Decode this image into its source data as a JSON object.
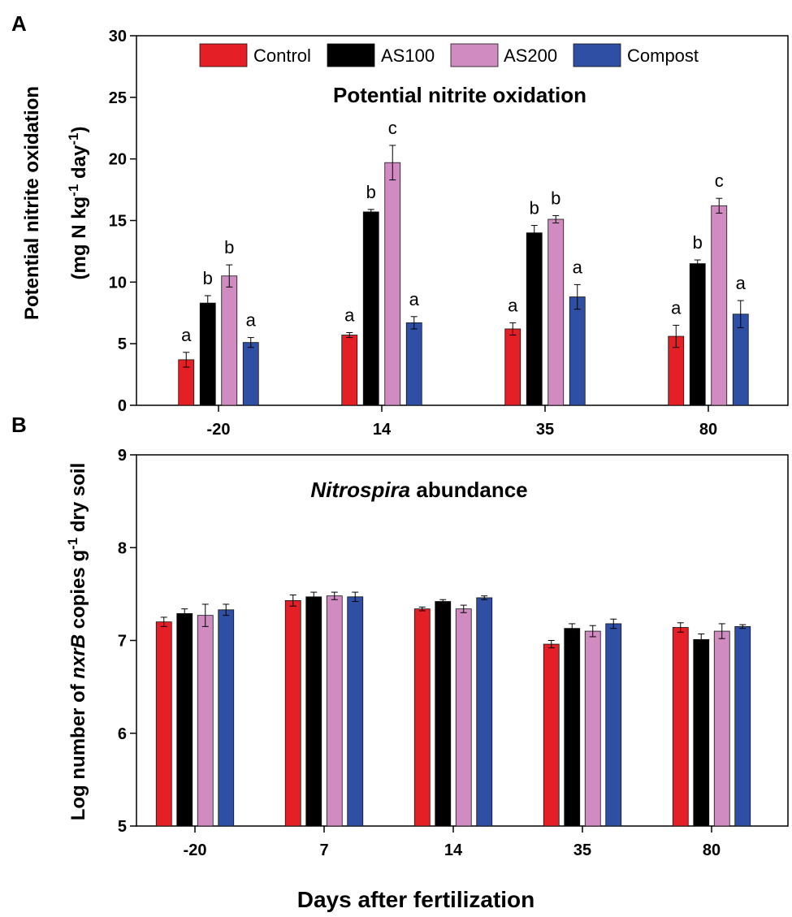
{
  "chart_data": [
    {
      "type": "bar",
      "panel": "A",
      "title": "Potential nitrite oxidation",
      "ylabel_line1": "Potential nitrite oxidation",
      "ylabel_line2": "(mg N kg-1 day-1)",
      "ylim": [
        0,
        30
      ],
      "yticks": [
        0,
        5,
        10,
        15,
        20,
        25,
        30
      ],
      "categories": [
        "-20",
        "14",
        "35",
        "80"
      ],
      "series": [
        {
          "name": "Control",
          "color": "#e41f26",
          "values": [
            3.7,
            5.7,
            6.2,
            5.6
          ],
          "errors": [
            0.6,
            0.2,
            0.5,
            0.9
          ],
          "letters": [
            "a",
            "a",
            "a",
            "a"
          ]
        },
        {
          "name": "AS100",
          "color": "#000000",
          "values": [
            8.3,
            15.7,
            14.0,
            11.5
          ],
          "errors": [
            0.6,
            0.2,
            0.6,
            0.3
          ],
          "letters": [
            "b",
            "b",
            "b",
            "b"
          ]
        },
        {
          "name": "AS200",
          "color": "#d08cc0",
          "values": [
            10.5,
            19.7,
            15.1,
            16.2
          ],
          "errors": [
            0.9,
            1.4,
            0.3,
            0.6
          ],
          "letters": [
            "b",
            "c",
            "b",
            "c"
          ]
        },
        {
          "name": "Compost",
          "color": "#2e4fa3",
          "values": [
            5.1,
            6.7,
            8.8,
            7.4
          ],
          "errors": [
            0.4,
            0.5,
            1.0,
            1.1
          ],
          "letters": [
            "a",
            "a",
            "a",
            "a"
          ]
        }
      ],
      "legend": {
        "position": "top-center"
      }
    },
    {
      "type": "bar",
      "panel": "B",
      "title_italic": "Nitrospira",
      "title_rest": " abundance",
      "ylabel_pre": "Log number of ",
      "ylabel_italic": "nxrB",
      "ylabel_post": " copies g-1 dry soil",
      "ylim": [
        5,
        9
      ],
      "yticks": [
        5,
        6,
        7,
        8,
        9
      ],
      "categories": [
        "-20",
        "7",
        "14",
        "35",
        "80"
      ],
      "series": [
        {
          "name": "Control",
          "color": "#e41f26",
          "values": [
            7.2,
            7.43,
            7.34,
            6.96,
            7.14
          ],
          "errors": [
            0.05,
            0.06,
            0.02,
            0.04,
            0.05
          ]
        },
        {
          "name": "AS100",
          "color": "#000000",
          "values": [
            7.29,
            7.47,
            7.42,
            7.13,
            7.01
          ],
          "errors": [
            0.05,
            0.05,
            0.02,
            0.05,
            0.06
          ]
        },
        {
          "name": "AS200",
          "color": "#d08cc0",
          "values": [
            7.27,
            7.48,
            7.34,
            7.1,
            7.1
          ],
          "errors": [
            0.12,
            0.04,
            0.04,
            0.06,
            0.08
          ]
        },
        {
          "name": "Compost",
          "color": "#2e4fa3",
          "values": [
            7.33,
            7.47,
            7.46,
            7.18,
            7.15
          ],
          "errors": [
            0.06,
            0.05,
            0.02,
            0.05,
            0.02
          ]
        }
      ]
    }
  ],
  "figure": {
    "panel_a_letter": "A",
    "panel_b_letter": "B",
    "xlabel": "Days after fertilization"
  }
}
